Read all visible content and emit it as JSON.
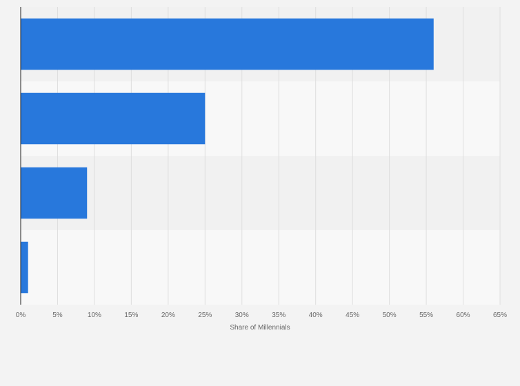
{
  "chart_data": {
    "type": "bar",
    "orientation": "horizontal",
    "categories": [
      "",
      "",
      "",
      ""
    ],
    "values": [
      56,
      25,
      9,
      1
    ],
    "xlabel": "Share of Millennials",
    "ylabel": "",
    "xlim": [
      0,
      65
    ],
    "xticks": [
      "0%",
      "5%",
      "10%",
      "15%",
      "20%",
      "25%",
      "30%",
      "35%",
      "40%",
      "45%",
      "50%",
      "55%",
      "60%",
      "65%"
    ],
    "tick_step": 5,
    "grid": true,
    "legend": "none",
    "colors": {
      "bar": "#2878dc",
      "band_dark": "#f1f1f1",
      "band_light": "#f8f8f8",
      "grid": "#dedede",
      "axis": "#222222"
    }
  }
}
